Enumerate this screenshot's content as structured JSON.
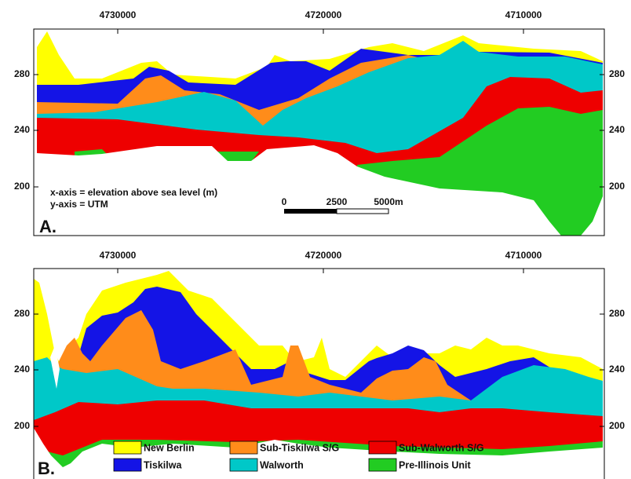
{
  "panels": [
    {
      "label": "A.",
      "x_ticks": [
        "4730000",
        "4720000",
        "4710000"
      ],
      "y_ticks": [
        "280",
        "240",
        "200"
      ]
    },
    {
      "label": "B.",
      "x_ticks": [
        "4730000",
        "4720000",
        "4710000"
      ],
      "y_ticks": [
        "280",
        "240",
        "200"
      ]
    }
  ],
  "annotations": [
    "x-axis = elevation above sea level (m)",
    "y-axis = UTM"
  ],
  "scale_bar": [
    "0",
    "2500",
    "5000m"
  ],
  "legend": [
    {
      "name": "New Berlin",
      "color": "#ffff00"
    },
    {
      "name": "Sub-Tiskilwa S/G",
      "color": "#ff8c1a"
    },
    {
      "name": "Sub-Walworth S/G",
      "color": "#ee0000"
    },
    {
      "name": "Tiskilwa",
      "color": "#1414e6"
    },
    {
      "name": "Walworth",
      "color": "#00c8c8"
    },
    {
      "name": "Pre-Illinois Unit",
      "color": "#22cc22"
    }
  ]
}
